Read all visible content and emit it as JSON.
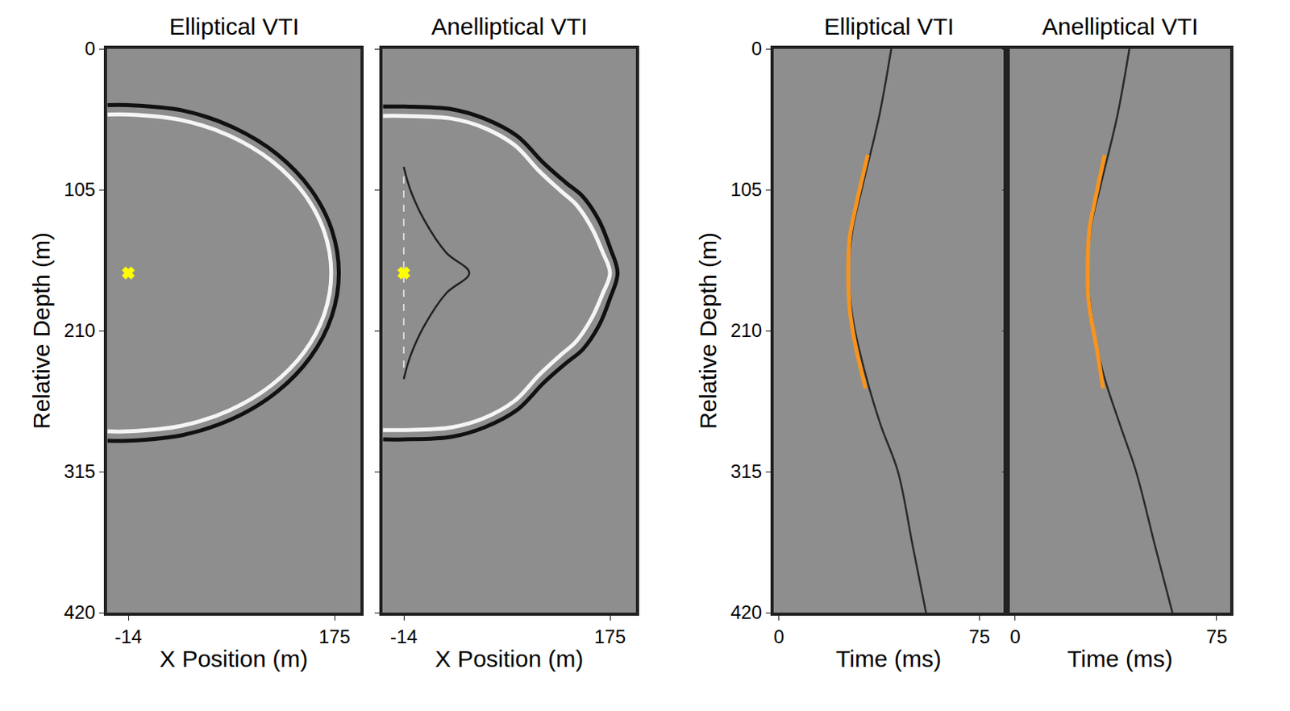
{
  "chart_data": [
    {
      "type": "line",
      "title": "Elliptical VTI",
      "x_label": "X Position (m)",
      "y_label": "Relative Depth (m)",
      "xlim": [
        -33.5,
        198.8
      ],
      "ylim": [
        420,
        0
      ],
      "xticks": [
        -14,
        175
      ],
      "yticks": [
        0,
        105,
        210,
        315,
        420
      ],
      "grid": false,
      "series": [
        {
          "color": "#111111",
          "line_style": "thick",
          "x": [
            -33,
            -14,
            36,
            82.5,
            122.5,
            153.1,
            172.4,
            179,
            172.4,
            153.1,
            122.5,
            82.5,
            36,
            -14,
            -33
          ],
          "values": [
            42,
            42,
            46,
            58.7,
            78.6,
            104.5,
            134.6,
            167,
            199.4,
            229.5,
            255.4,
            275.3,
            287.7,
            292,
            292
          ]
        },
        {
          "color": "#f5f5f5",
          "line_style": "thick",
          "x": [
            -33,
            -14,
            34.1,
            79,
            117.5,
            147.1,
            165.7,
            172,
            165.7,
            147.1,
            117.5,
            79,
            34.1,
            -14,
            -33
          ],
          "values": [
            49,
            49,
            53,
            64.8,
            83.6,
            108,
            136.5,
            167,
            197.5,
            226,
            250.4,
            269.2,
            281,
            285,
            285
          ]
        },
        {
          "color": "#ffff00",
          "type": "scatter",
          "marker": "x",
          "x": [
            -14
          ],
          "values": [
            167
          ]
        }
      ]
    },
    {
      "type": "line",
      "title": "Anelliptical VTI",
      "x_label": "X Position (m)",
      "xlim": [
        -33.5,
        198.8
      ],
      "ylim": [
        420,
        0
      ],
      "xticks": [
        -14,
        175
      ],
      "yticks": [
        0,
        105,
        210,
        315,
        420
      ],
      "grid": false,
      "tick_labels": "x",
      "series": [
        {
          "color": "#111111",
          "line_style": "thick",
          "x": [
            -33,
            -14,
            30,
            60,
            90,
            114,
            135,
            150,
            165,
            175,
            182,
            175,
            165,
            150,
            135,
            114,
            90,
            60,
            30,
            -14,
            -33
          ],
          "values": [
            43,
            43,
            45,
            52,
            65,
            85,
            100,
            110,
            128,
            148,
            167,
            186,
            206,
            224,
            234,
            249,
            269,
            282,
            289,
            291,
            291
          ]
        },
        {
          "color": "#f5f5f5",
          "line_style": "thick",
          "x": [
            -33,
            -14,
            30,
            60,
            88,
            110,
            130,
            144,
            158,
            168,
            175,
            168,
            158,
            144,
            130,
            110,
            88,
            60,
            30,
            -14,
            -33
          ],
          "values": [
            50,
            50,
            52,
            59,
            72,
            91,
            106,
            116,
            133,
            151,
            167,
            183,
            201,
            218,
            228,
            243,
            262,
            275,
            282,
            284,
            284
          ]
        },
        {
          "color": "#222222",
          "line_style": "solid",
          "x": [
            -14,
            -8,
            5,
            25,
            46,
            25,
            5,
            -8,
            -14
          ],
          "values": [
            88,
            105,
            128,
            152,
            167,
            182,
            206,
            229,
            246
          ]
        },
        {
          "color": "#f0f0f0",
          "line_style": "dashed",
          "x": [
            -14,
            -14
          ],
          "values": [
            95,
            240
          ]
        },
        {
          "color": "#ffff00",
          "type": "scatter",
          "marker": "x",
          "x": [
            -14
          ],
          "values": [
            167
          ]
        }
      ]
    },
    {
      "type": "line",
      "title": "Elliptical VTI",
      "x_label": "Time (ms)",
      "y_label": "Relative Depth (m)",
      "xlim": [
        -2,
        84
      ],
      "ylim": [
        420,
        0
      ],
      "xticks": [
        0,
        75
      ],
      "yticks": [
        0,
        105,
        210,
        315,
        420
      ],
      "grid": false,
      "series": [
        {
          "color": "#2a2a2a",
          "line_style": "solid",
          "x": [
            42,
            37.5,
            31.5,
            27.5,
            26,
            27.5,
            32,
            38,
            44.5,
            50,
            55
          ],
          "values": [
            0,
            50,
            100,
            135,
            167,
            200,
            240,
            280,
            315,
            370,
            420
          ]
        },
        {
          "color": "#f7941d",
          "line_style": "thick",
          "x": [
            33.2,
            29,
            26.5,
            25.9,
            26.5,
            28.5,
            32.4
          ],
          "values": [
            79,
            115,
            140,
            167,
            195,
            220,
            253
          ]
        }
      ]
    },
    {
      "type": "line",
      "title": "Anelliptical VTI",
      "x_label": "Time (ms)",
      "xlim": [
        -2,
        80
      ],
      "ylim": [
        420,
        0
      ],
      "xticks": [
        0,
        75
      ],
      "yticks": [
        0,
        105,
        210,
        315,
        420
      ],
      "grid": false,
      "tick_labels": "x",
      "series": [
        {
          "color": "#2a2a2a",
          "line_style": "solid",
          "x": [
            42.5,
            38,
            32,
            28,
            27,
            28.5,
            32.5,
            39,
            45,
            52,
            58.5
          ],
          "values": [
            0,
            50,
            100,
            135,
            167,
            200,
            240,
            280,
            315,
            370,
            420
          ]
        },
        {
          "color": "#f7941d",
          "line_style": "thick",
          "x": [
            33.3,
            30,
            27.6,
            27,
            27.2,
            28.2,
            30.5,
            32.7
          ],
          "values": [
            79,
            110,
            135,
            160,
            185,
            200,
            225,
            253
          ]
        }
      ]
    }
  ]
}
